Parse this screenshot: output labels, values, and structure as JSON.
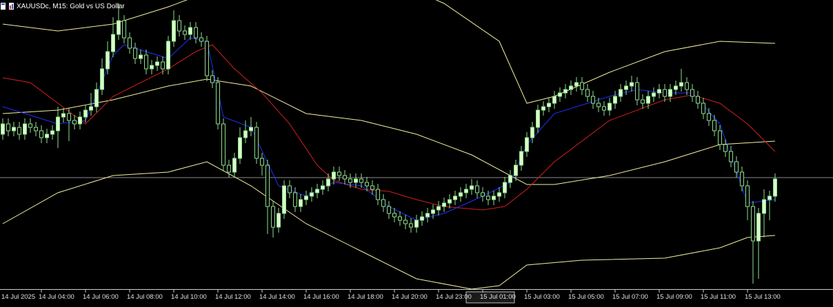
{
  "chart_data": {
    "type": "candlestick",
    "title": "XAUUSDc, M15:  Gold vs US Dollar",
    "xlim": [
      -0.5,
      150.5
    ],
    "ylim": [
      3336,
      3378
    ],
    "xticks": [
      {
        "value": -1,
        "label": "14 Jul 2025"
      },
      {
        "value": 7,
        "label": "14 Jul 04:00"
      },
      {
        "value": 15,
        "label": "14 Jul 06:00"
      },
      {
        "value": 23,
        "label": "14 Jul 08:00"
      },
      {
        "value": 31,
        "label": "14 Jul 10:00"
      },
      {
        "value": 39,
        "label": "14 Jul 12:00"
      },
      {
        "value": 47,
        "label": "14 Jul 14:00"
      },
      {
        "value": 55,
        "label": "14 Jul 16:00"
      },
      {
        "value": 63,
        "label": "14 Jul 18:00"
      },
      {
        "value": 71,
        "label": "14 Jul 20:00"
      },
      {
        "value": 79,
        "label": "14 Jul 23:00"
      },
      {
        "value": 87,
        "label": "15 Jul 01:00"
      },
      {
        "value": 95,
        "label": "15 Jul 03:00"
      },
      {
        "value": 103,
        "label": "15 Jul 05:00"
      },
      {
        "value": 111,
        "label": "15 Jul 07:00"
      },
      {
        "value": 119,
        "label": "15 Jul 09:00"
      },
      {
        "value": 127,
        "label": "15 Jul 11:00"
      },
      {
        "value": 135,
        "label": "15 Jul 13:00"
      }
    ],
    "bull_color": "#d8ffc8",
    "bear_color": "#000000",
    "wick_color": "#8fe08f",
    "price_line": {
      "value": 3352.2,
      "color": "#8c8c8c"
    },
    "x": [
      0,
      1,
      2,
      3,
      4,
      5,
      6,
      7,
      8,
      9,
      10,
      11,
      12,
      13,
      14,
      15,
      16,
      17,
      18,
      19,
      20,
      21,
      22,
      23,
      24,
      25,
      26,
      27,
      28,
      29,
      30,
      31,
      32,
      33,
      34,
      35,
      36,
      37,
      38,
      39,
      40,
      41,
      42,
      43,
      44,
      45,
      46,
      47,
      48,
      49,
      50,
      51,
      52,
      53,
      54,
      55,
      56,
      57,
      58,
      59,
      60,
      61,
      62,
      63,
      64,
      65,
      66,
      67,
      68,
      69,
      70,
      71,
      72,
      73,
      74,
      75,
      76,
      77,
      78,
      79,
      80,
      81,
      82,
      83,
      84,
      85,
      86,
      87,
      88,
      89,
      90,
      91,
      92,
      93,
      94,
      95,
      96,
      97,
      98,
      99,
      100,
      101,
      102,
      103,
      104,
      105,
      106,
      107,
      108,
      109,
      110,
      111,
      112,
      113,
      114,
      115,
      116,
      117,
      118,
      119,
      120,
      121,
      122,
      123,
      124,
      125,
      126,
      127,
      128,
      129,
      130,
      131,
      132,
      133,
      134,
      135,
      136,
      137,
      138,
      139,
      140
    ],
    "open": [
      3358.5,
      3360.0,
      3359.0,
      3359.5,
      3358.5,
      3360.0,
      3359.5,
      3359.0,
      3358.0,
      3358.5,
      3359.0,
      3361.0,
      3361.5,
      3360.5,
      3360.0,
      3361.0,
      3362.0,
      3362.5,
      3365.0,
      3368.0,
      3370.5,
      3373.0,
      3375.0,
      3372.5,
      3371.0,
      3369.5,
      3370.0,
      3368.0,
      3368.5,
      3369.0,
      3368.0,
      3372.0,
      3375.0,
      3373.5,
      3373.0,
      3374.0,
      3372.5,
      3372.0,
      3367.0,
      3366.0,
      3360.0,
      3354.0,
      3353.0,
      3355.0,
      3358.0,
      3359.0,
      3359.5,
      3355.0,
      3354.0,
      3348.0,
      3345.0,
      3347.0,
      3351.0,
      3350.0,
      3348.0,
      3349.0,
      3349.5,
      3350.0,
      3350.5,
      3351.0,
      3352.0,
      3353.0,
      3352.5,
      3352.0,
      3351.5,
      3352.0,
      3351.5,
      3351.0,
      3350.5,
      3349.0,
      3348.0,
      3347.0,
      3346.5,
      3346.0,
      3345.5,
      3345.0,
      3346.0,
      3346.5,
      3347.0,
      3347.5,
      3348.0,
      3348.5,
      3349.0,
      3349.5,
      3350.0,
      3350.5,
      3351.0,
      3350.0,
      3349.5,
      3349.0,
      3349.5,
      3350.0,
      3351.5,
      3352.5,
      3354.0,
      3356.0,
      3358.0,
      3359.5,
      3362.0,
      3362.5,
      3363.0,
      3364.0,
      3364.5,
      3365.0,
      3365.5,
      3366.0,
      3365.0,
      3364.0,
      3363.0,
      3362.5,
      3362.0,
      3363.0,
      3364.0,
      3365.0,
      3365.5,
      3366.0,
      3363.5,
      3363.0,
      3364.0,
      3364.5,
      3365.0,
      3364.0,
      3365.0,
      3365.5,
      3366.0,
      3365.0,
      3364.0,
      3363.0,
      3361.5,
      3360.5,
      3359.0,
      3357.0,
      3356.0,
      3354.5,
      3353.0,
      3351.0,
      3348.0,
      3343.0,
      3347.0,
      3349.0,
      3349.5
    ],
    "high": [
      3360.8,
      3360.8,
      3360.3,
      3360.3,
      3360.8,
      3360.8,
      3360.3,
      3359.8,
      3359.3,
      3359.8,
      3362.5,
      3362.3,
      3362.3,
      3361.3,
      3361.8,
      3362.8,
      3364.5,
      3366.0,
      3369.5,
      3372.0,
      3375.5,
      3377.5,
      3375.8,
      3373.3,
      3371.8,
      3370.8,
      3370.8,
      3369.3,
      3369.8,
      3369.8,
      3372.8,
      3376.5,
      3375.8,
      3374.3,
      3374.8,
      3374.8,
      3373.3,
      3372.8,
      3367.8,
      3366.8,
      3360.8,
      3354.8,
      3355.8,
      3359.5,
      3360.5,
      3361.0,
      3360.3,
      3355.8,
      3354.8,
      3348.8,
      3347.8,
      3351.8,
      3351.8,
      3350.8,
      3349.8,
      3350.3,
      3350.8,
      3351.3,
      3351.8,
      3352.8,
      3353.8,
      3353.8,
      3353.3,
      3352.8,
      3352.8,
      3352.8,
      3352.3,
      3351.8,
      3351.3,
      3349.8,
      3348.8,
      3347.8,
      3347.3,
      3346.8,
      3346.3,
      3346.8,
      3347.3,
      3347.8,
      3348.3,
      3348.8,
      3349.3,
      3349.8,
      3350.3,
      3350.8,
      3351.3,
      3352.0,
      3351.8,
      3350.8,
      3350.3,
      3350.3,
      3350.8,
      3352.3,
      3353.3,
      3354.8,
      3356.8,
      3358.8,
      3360.3,
      3362.8,
      3363.3,
      3363.8,
      3364.8,
      3365.3,
      3365.8,
      3366.3,
      3366.8,
      3366.8,
      3365.8,
      3364.8,
      3363.8,
      3363.3,
      3363.8,
      3364.8,
      3365.8,
      3366.3,
      3367.0,
      3366.8,
      3364.3,
      3364.8,
      3365.3,
      3365.8,
      3365.8,
      3365.8,
      3366.3,
      3368.0,
      3366.8,
      3365.8,
      3364.8,
      3363.8,
      3362.3,
      3361.3,
      3359.8,
      3357.8,
      3356.8,
      3355.3,
      3353.8,
      3351.8,
      3348.8,
      3347.8,
      3350.5,
      3350.3,
      3352.8
    ],
    "low": [
      3357.7,
      3358.2,
      3358.2,
      3357.7,
      3357.7,
      3358.7,
      3358.2,
      3357.2,
      3357.2,
      3357.7,
      3356.5,
      3360.2,
      3357.5,
      3359.2,
      3359.2,
      3360.2,
      3361.2,
      3361.7,
      3364.2,
      3367.2,
      3369.7,
      3372.2,
      3371.7,
      3370.2,
      3368.7,
      3368.7,
      3367.2,
      3367.2,
      3367.7,
      3367.2,
      3367.2,
      3371.2,
      3372.7,
      3372.2,
      3372.2,
      3371.7,
      3371.2,
      3366.2,
      3365.2,
      3359.2,
      3353.2,
      3352.2,
      3352.2,
      3354.2,
      3357.2,
      3358.2,
      3354.2,
      3352.5,
      3344.0,
      3343.5,
      3344.2,
      3346.2,
      3349.2,
      3347.2,
      3347.2,
      3348.2,
      3348.7,
      3349.2,
      3349.7,
      3350.2,
      3351.2,
      3351.7,
      3351.2,
      3350.7,
      3350.7,
      3350.7,
      3350.2,
      3349.7,
      3348.2,
      3347.2,
      3346.2,
      3345.7,
      3345.2,
      3344.7,
      3344.2,
      3344.2,
      3345.2,
      3345.7,
      3346.2,
      3346.7,
      3347.2,
      3347.7,
      3348.2,
      3348.7,
      3349.2,
      3349.7,
      3349.2,
      3348.7,
      3348.2,
      3348.2,
      3348.7,
      3349.2,
      3350.7,
      3351.7,
      3353.2,
      3355.2,
      3357.2,
      3358.7,
      3361.2,
      3361.7,
      3362.2,
      3363.2,
      3363.7,
      3364.2,
      3364.7,
      3364.2,
      3363.2,
      3362.2,
      3361.7,
      3361.2,
      3361.2,
      3362.2,
      3363.2,
      3364.2,
      3364.7,
      3362.7,
      3362.2,
      3362.2,
      3363.2,
      3363.7,
      3363.2,
      3363.2,
      3364.2,
      3364.7,
      3364.2,
      3363.2,
      3362.2,
      3360.7,
      3359.7,
      3358.2,
      3356.2,
      3355.2,
      3353.7,
      3352.2,
      3350.2,
      3346.0,
      3336.8,
      3337.5,
      3343.5,
      3346.0,
      3348.7
    ],
    "close": [
      3360.0,
      3359.0,
      3359.5,
      3358.5,
      3360.0,
      3359.5,
      3359.0,
      3358.0,
      3358.5,
      3359.0,
      3361.0,
      3361.5,
      3360.5,
      3360.0,
      3361.0,
      3362.0,
      3362.5,
      3365.0,
      3368.0,
      3370.5,
      3373.0,
      3375.0,
      3372.5,
      3371.0,
      3369.5,
      3370.0,
      3368.0,
      3368.5,
      3369.0,
      3368.0,
      3372.0,
      3375.0,
      3373.5,
      3373.0,
      3374.0,
      3372.5,
      3372.0,
      3367.0,
      3366.0,
      3360.0,
      3354.0,
      3353.0,
      3355.0,
      3358.0,
      3359.0,
      3359.5,
      3355.0,
      3354.0,
      3348.0,
      3345.0,
      3347.0,
      3351.0,
      3350.0,
      3348.0,
      3349.0,
      3349.5,
      3350.0,
      3350.5,
      3351.0,
      3352.0,
      3353.0,
      3352.5,
      3352.0,
      3351.5,
      3352.0,
      3351.5,
      3351.0,
      3350.5,
      3349.0,
      3348.0,
      3347.0,
      3346.5,
      3346.0,
      3345.5,
      3345.0,
      3346.0,
      3346.5,
      3347.0,
      3347.5,
      3348.0,
      3348.5,
      3349.0,
      3349.5,
      3350.0,
      3350.5,
      3351.0,
      3350.0,
      3349.5,
      3349.0,
      3349.5,
      3350.0,
      3351.5,
      3352.5,
      3354.0,
      3356.0,
      3358.0,
      3359.5,
      3362.0,
      3362.5,
      3363.0,
      3364.0,
      3364.5,
      3365.0,
      3365.5,
      3366.0,
      3365.0,
      3364.0,
      3363.0,
      3362.5,
      3362.0,
      3363.0,
      3364.0,
      3365.0,
      3365.5,
      3366.0,
      3363.5,
      3363.0,
      3364.0,
      3364.5,
      3365.0,
      3364.0,
      3365.0,
      3365.5,
      3366.0,
      3365.0,
      3364.0,
      3363.0,
      3361.5,
      3360.5,
      3359.0,
      3357.0,
      3356.0,
      3354.5,
      3353.0,
      3351.0,
      3348.0,
      3343.0,
      3347.0,
      3349.0,
      3349.5,
      3352.0
    ],
    "overlays": [
      {
        "color": "#f5f0a0",
        "x": [
          0,
          10,
          20,
          30,
          40,
          50,
          60,
          70,
          80,
          90,
          95,
          100,
          110,
          120,
          130,
          140
        ],
        "values": [
          3374.5,
          3373.5,
          3374.5,
          3377.0,
          3380.0,
          3382.0,
          3383.0,
          3381.0,
          3377.5,
          3372.0,
          3363.0,
          3364.0,
          3367.5,
          3370.5,
          3372.0,
          3371.7
        ]
      },
      {
        "color": "#f5f0a0",
        "x": [
          0,
          10,
          20,
          30,
          37,
          45,
          55,
          65,
          75,
          85,
          95,
          100,
          110,
          120,
          130,
          140
        ],
        "values": [
          3361.5,
          3362.0,
          3363.5,
          3365.5,
          3366.5,
          3365.5,
          3361.5,
          3360.5,
          3358.5,
          3355.5,
          3351.2,
          3351.2,
          3352.5,
          3354.5,
          3357.0,
          3357.5
        ]
      },
      {
        "color": "#f5f0a0",
        "x": [
          0,
          10,
          20,
          30,
          37,
          45,
          55,
          65,
          75,
          85,
          90,
          95,
          105,
          120,
          130,
          135,
          140
        ],
        "values": [
          3345.5,
          3350.0,
          3352.5,
          3353.0,
          3354.5,
          3351.0,
          3345.5,
          3341.5,
          3337.5,
          3336.0,
          3336.5,
          3339.5,
          3340.2,
          3340.5,
          3342.0,
          3343.5,
          3343.8
        ]
      },
      {
        "color": "#d22020",
        "x": [
          0,
          5,
          15,
          20,
          30,
          35,
          38,
          42,
          47,
          52,
          57,
          60,
          65,
          70,
          75,
          80,
          87,
          91,
          95,
          100,
          110,
          120,
          125,
          130,
          135,
          140
        ],
        "values": [
          3366.7,
          3366.0,
          3360.0,
          3364.0,
          3368.0,
          3370.5,
          3371.5,
          3368.0,
          3364.5,
          3360.0,
          3354.0,
          3351.8,
          3350.5,
          3350.2,
          3349.0,
          3348.0,
          3347.5,
          3348.0,
          3350.5,
          3354.5,
          3360.5,
          3363.5,
          3364.2,
          3363.0,
          3360.0,
          3356.0
        ]
      },
      {
        "color": "#2030ff",
        "x": [
          0,
          10,
          15,
          20,
          22,
          30,
          34,
          37,
          40,
          45,
          50,
          55,
          60,
          65,
          70,
          75,
          80,
          87,
          92,
          95,
          100,
          110,
          115,
          120,
          125,
          130,
          135,
          140
        ],
        "values": [
          3362.5,
          3360.0,
          3360.5,
          3370.0,
          3371.5,
          3369.5,
          3372.5,
          3372.0,
          3361.0,
          3359.5,
          3351.0,
          3349.5,
          3351.5,
          3351.0,
          3348.0,
          3346.0,
          3347.0,
          3349.5,
          3351.5,
          3357.0,
          3361.5,
          3364.0,
          3365.0,
          3364.5,
          3364.5,
          3360.0,
          3348.5,
          3349.0
        ]
      }
    ]
  }
}
